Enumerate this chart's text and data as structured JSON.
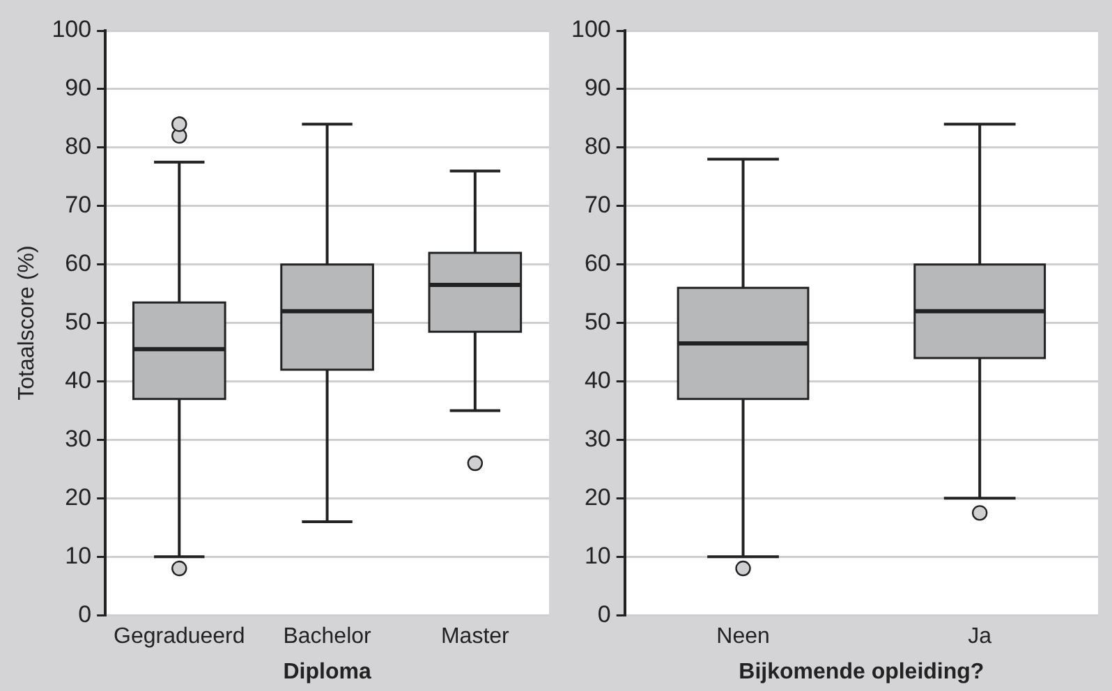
{
  "chart_data": [
    {
      "type": "box",
      "ylabel": "Totaalscore (%)",
      "xlabel": "Diploma",
      "categories": [
        "Gegradueerd",
        "Bachelor",
        "Master"
      ],
      "color": "#b7b8ba",
      "boxes": [
        {
          "low": 10,
          "q1": 37,
          "median": 45.5,
          "q3": 53.5,
          "high": 77.5,
          "outliers": [
            8,
            82,
            84
          ]
        },
        {
          "low": 16,
          "q1": 42,
          "median": 52,
          "q3": 60,
          "high": 84
        },
        {
          "low": 35,
          "q1": 48.5,
          "median": 56.5,
          "q3": 62,
          "high": 76,
          "outliers": [
            26
          ]
        }
      ],
      "ylim": [
        0,
        100
      ],
      "yticks": [
        0,
        10,
        20,
        30,
        40,
        50,
        60,
        70,
        80,
        90,
        100
      ],
      "grid": "y"
    },
    {
      "type": "box",
      "xlabel": "Bijkomende opleiding?",
      "categories": [
        "Neen",
        "Ja"
      ],
      "color": "#b7b8ba",
      "boxes": [
        {
          "low": 10,
          "q1": 37,
          "median": 46.5,
          "q3": 56,
          "high": 78,
          "outliers": [
            8
          ]
        },
        {
          "low": 20,
          "q1": 44,
          "median": 52,
          "q3": 60,
          "high": 84,
          "outliers": [
            17.5
          ]
        }
      ],
      "ylim": [
        0,
        100
      ],
      "yticks": [
        0,
        10,
        20,
        30,
        40,
        50,
        60,
        70,
        80,
        90,
        100
      ],
      "grid": "y"
    }
  ]
}
